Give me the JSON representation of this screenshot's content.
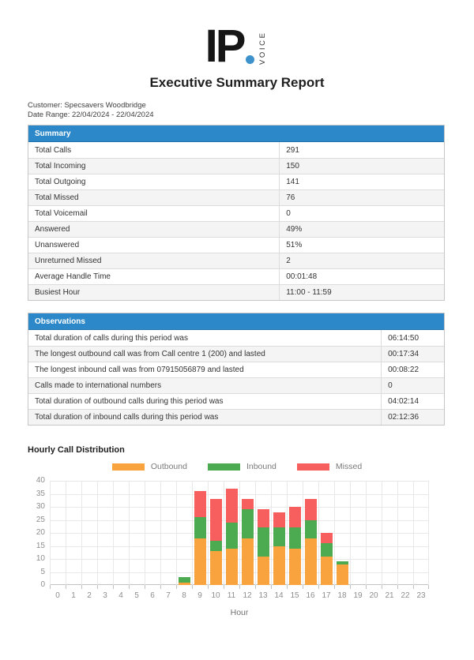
{
  "logo": {
    "text": "IP",
    "vertical_text": "VOICE",
    "dot_color": "#3D92CB"
  },
  "title": "Executive Summary Report",
  "meta": {
    "customer_line": "Customer: Specsavers Woodbridge",
    "date_range_line": "Date Range: 22/04/2024 - 22/04/2024"
  },
  "colors": {
    "table_header_bg": "#2C88C8",
    "table_header_text": "#FFFFFF",
    "row_alt_bg": "#F4F4F4",
    "outbound": "#F8A33E",
    "inbound": "#4CAB51",
    "missed": "#F75F5F"
  },
  "summary_table": {
    "header": "Summary",
    "rows": [
      {
        "label": "Total Calls",
        "value": "291"
      },
      {
        "label": "Total Incoming",
        "value": "150"
      },
      {
        "label": "Total Outgoing",
        "value": "141"
      },
      {
        "label": "Total Missed",
        "value": "76"
      },
      {
        "label": "Total Voicemail",
        "value": "0"
      },
      {
        "label": "Answered",
        "value": "49%"
      },
      {
        "label": "Unanswered",
        "value": "51%"
      },
      {
        "label": "Unreturned Missed",
        "value": "2"
      },
      {
        "label": "Average Handle Time",
        "value": "00:01:48"
      },
      {
        "label": "Busiest Hour",
        "value": "11:00 - 11:59"
      }
    ]
  },
  "observations_table": {
    "header": "Observations",
    "rows": [
      {
        "label": "Total duration of calls during this period was",
        "value": "06:14:50"
      },
      {
        "label": "The longest outbound call was from Call centre 1 (200) and lasted",
        "value": "00:17:34"
      },
      {
        "label": "The longest inbound call was from 07915056879 and lasted",
        "value": "00:08:22"
      },
      {
        "label": "Calls made to international numbers",
        "value": "0"
      },
      {
        "label": "Total duration of outbound calls during this period was",
        "value": "04:02:14"
      },
      {
        "label": "Total duration of inbound calls during this period was",
        "value": "02:12:36"
      }
    ]
  },
  "chart_data": {
    "type": "bar",
    "stacked": true,
    "title": "Hourly Call Distribution",
    "xlabel": "Hour",
    "ylim": [
      0,
      40
    ],
    "ytick_step": 5,
    "grid": true,
    "legend_position": "top",
    "categories": [
      "0",
      "1",
      "2",
      "3",
      "4",
      "5",
      "6",
      "7",
      "8",
      "9",
      "10",
      "11",
      "12",
      "13",
      "14",
      "15",
      "16",
      "17",
      "18",
      "19",
      "20",
      "21",
      "22",
      "23"
    ],
    "series": [
      {
        "name": "Outbound",
        "color": "#F8A33E",
        "values": [
          0,
          0,
          0,
          0,
          0,
          0,
          0,
          0,
          1,
          18,
          13,
          14,
          18,
          11,
          15,
          14,
          18,
          11,
          8,
          0,
          0,
          0,
          0,
          0
        ]
      },
      {
        "name": "Inbound",
        "color": "#4CAB51",
        "values": [
          0,
          0,
          0,
          0,
          0,
          0,
          0,
          0,
          2,
          8,
          4,
          10,
          11,
          11,
          7,
          8,
          7,
          5,
          1,
          0,
          0,
          0,
          0,
          0
        ]
      },
      {
        "name": "Missed",
        "color": "#F75F5F",
        "values": [
          0,
          0,
          0,
          0,
          0,
          0,
          0,
          0,
          0,
          10,
          16,
          13,
          4,
          7,
          6,
          8,
          8,
          4,
          0,
          0,
          0,
          0,
          0,
          0
        ]
      }
    ]
  }
}
